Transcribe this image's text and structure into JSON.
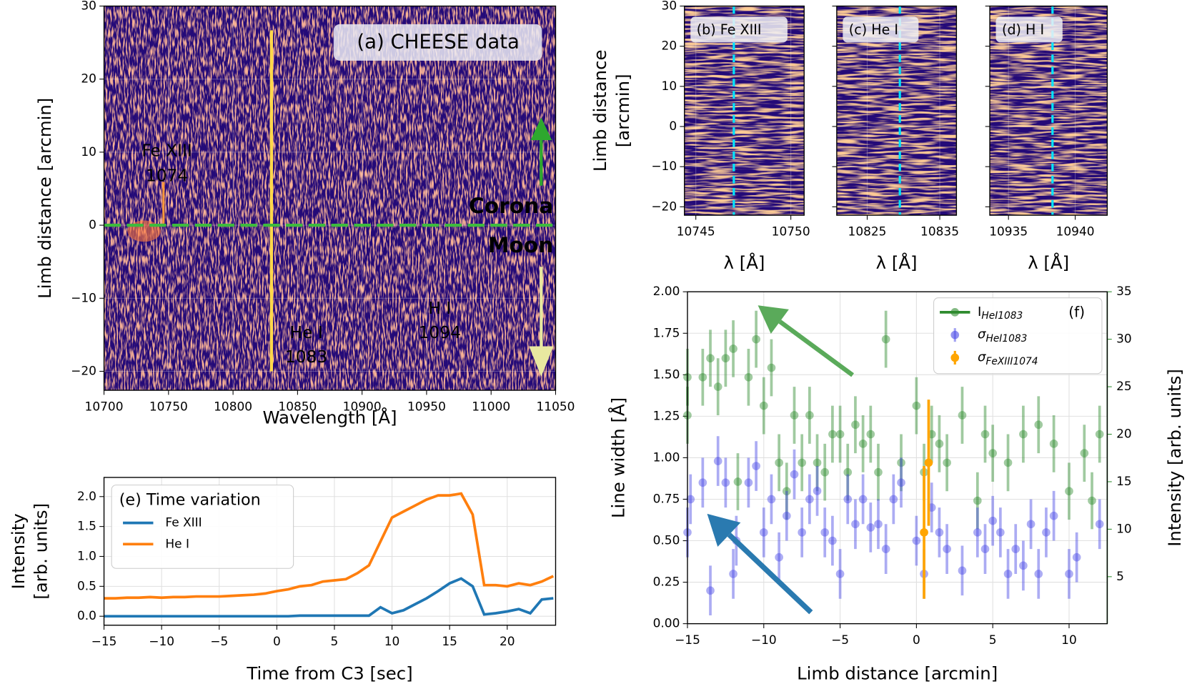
{
  "chart_data": [
    {
      "type": "heatmap",
      "xlabel": "Wavelength [Å]",
      "ylabel": [
        "Limb distance [arcmin]"
      ],
      "annotations": [
        "(a) CHEESE data",
        "Fe XIII",
        "1074",
        "He I",
        "1083",
        "H I",
        "1094",
        "Corona",
        "Moon"
      ],
      "xlim": [
        10700,
        11050
      ],
      "xticks": [
        10700,
        10750,
        10800,
        10850,
        10900,
        10950,
        11000,
        11050
      ],
      "ylim": [
        -22.6,
        30
      ],
      "yticks": [
        {
          "value": -20,
          "label": "−20"
        },
        {
          "value": -10,
          "label": "−10"
        },
        0,
        10,
        20,
        30
      ],
      "grid": true,
      "show_ytick_labels": true
    },
    {
      "type": "heatmap",
      "title": "(b) Fe XIII",
      "xlabel": "λ [Å]",
      "ylabel": [
        "Limb distance",
        "[arcmin]"
      ],
      "xlim": [
        10744.4,
        10750.7
      ],
      "xticks": [
        10745,
        10750
      ],
      "line_x": 10747,
      "ylim": [
        -22.1,
        30
      ],
      "yticks": [
        {
          "value": -20,
          "label": "−20"
        },
        {
          "value": -10,
          "label": "−10"
        },
        0,
        10,
        20,
        30
      ],
      "grid": true,
      "show_ytick_labels": true
    },
    {
      "type": "heatmap",
      "title": "(c) He I",
      "xlabel": "λ [Å]",
      "xlim": [
        10820.8,
        10837.3
      ],
      "xticks": [
        10825,
        10835
      ],
      "line_x": 10829.5,
      "ylim": [
        -22.1,
        30
      ],
      "yticks": [
        -20,
        -10,
        0,
        10,
        20,
        30
      ],
      "grid": true,
      "show_ytick_labels": false
    },
    {
      "type": "heatmap",
      "title": "(d) H I",
      "xlabel": "λ [Å]",
      "xlim": [
        10933.6,
        10942.4
      ],
      "xticks": [
        10935,
        10940
      ],
      "line_x": 10938.3,
      "ylim": [
        -22.1,
        30
      ],
      "yticks": [
        -20,
        -10,
        0,
        10,
        20,
        30
      ],
      "grid": true,
      "show_ytick_labels": false
    },
    {
      "type": "line",
      "xlabel": "Time from C3 [sec]",
      "ylabel": [
        "Intensity",
        "[arb. units]"
      ],
      "legend_title": "(e) Time variation",
      "x": [
        -15,
        -14,
        -13,
        -12,
        -11,
        -10,
        -9,
        -8,
        -7,
        -6,
        -5,
        -4,
        -3,
        -2,
        -1,
        0,
        1,
        2,
        3,
        4,
        5,
        6,
        7,
        8,
        9,
        10,
        11,
        12,
        13,
        14,
        15,
        16,
        17,
        18,
        19,
        20,
        21,
        22,
        23,
        24
      ],
      "series": [
        {
          "name": "Fe XIII",
          "color": "#1f77b4",
          "values": [
            0,
            0,
            0,
            0,
            0,
            0,
            0,
            0,
            0,
            0,
            0,
            0,
            0,
            0,
            0,
            0,
            0,
            0.01,
            0.01,
            0.01,
            0.01,
            0.01,
            0.01,
            0.01,
            0.15,
            0.05,
            0.1,
            0.2,
            0.3,
            0.42,
            0.55,
            0.63,
            0.5,
            0.03,
            0.05,
            0.08,
            0.12,
            0.05,
            0.28,
            0.3
          ]
        },
        {
          "name": "He I",
          "color": "#ff7f0e",
          "values": [
            0.3,
            0.3,
            0.31,
            0.31,
            0.32,
            0.31,
            0.32,
            0.32,
            0.33,
            0.33,
            0.33,
            0.34,
            0.35,
            0.36,
            0.38,
            0.42,
            0.45,
            0.5,
            0.52,
            0.58,
            0.6,
            0.62,
            0.72,
            0.85,
            1.25,
            1.65,
            1.75,
            1.85,
            1.95,
            2.02,
            2.02,
            2.05,
            1.7,
            0.52,
            0.52,
            0.5,
            0.55,
            0.52,
            0.58,
            0.67
          ]
        }
      ],
      "xlim": [
        -15,
        24.2
      ],
      "xticks": [
        {
          "value": -15,
          "label": "−15"
        },
        {
          "value": -10,
          "label": "−10"
        },
        {
          "value": -5,
          "label": "−5"
        },
        0,
        5,
        10,
        15,
        20
      ],
      "ylim": [
        -0.15,
        2.32
      ],
      "yticks": [
        {
          "value": 0,
          "label": "0.0"
        },
        0.5,
        {
          "value": 1,
          "label": "1.0"
        },
        1.5,
        {
          "value": 2,
          "label": "2.0"
        }
      ],
      "grid": true,
      "legend": "upper left"
    },
    {
      "type": "scatter",
      "xlabel": "Limb distance [arcmin]",
      "ylabel": [
        "Line width [Å]"
      ],
      "y2label": "Intensity [arb. units]",
      "legend_title": "(f)",
      "series": [
        {
          "name": "I",
          "name_sub": "HeI1083",
          "color": "#2e8b2e",
          "axis": "y2",
          "x": [
            -15,
            -15,
            -14,
            -13.5,
            -13,
            -12.5,
            -12,
            -11.7,
            -11,
            -10.5,
            -10,
            -9.5,
            -9,
            -8.5,
            -8,
            -7.5,
            -7,
            -6.5,
            -6,
            -5.5,
            -5,
            -4.5,
            -4,
            -3.5,
            -3,
            -2.5,
            -2,
            -1,
            0,
            0.5,
            1,
            1.5,
            2,
            3,
            4,
            4.5,
            5,
            6,
            7,
            8,
            9,
            10,
            11,
            11.5,
            12
          ],
          "values": [
            22,
            26,
            26,
            28,
            25,
            28,
            29,
            15,
            26,
            30,
            23,
            27,
            17,
            14,
            22,
            17,
            22,
            17,
            16,
            20,
            20,
            16,
            21,
            19,
            20,
            16,
            30,
            17,
            23,
            16,
            20,
            19,
            17,
            22,
            13,
            20,
            18,
            17,
            20,
            21,
            19,
            14,
            18,
            13,
            20
          ],
          "errors": [
            3,
            3,
            3,
            3,
            3,
            3,
            3,
            3,
            3,
            3,
            3,
            3,
            3,
            3,
            3,
            3,
            3,
            3,
            3,
            3,
            3,
            3,
            3,
            3,
            3,
            3,
            3,
            3,
            3,
            3,
            3,
            3,
            3,
            3,
            3,
            3,
            3,
            3,
            3,
            3,
            3,
            3,
            3,
            3,
            3
          ]
        },
        {
          "name": "σ",
          "name_sub": "HeI1083",
          "color": "#4a4ae6",
          "x": [
            -15,
            -14.8,
            -14,
            -13.5,
            -13,
            -12.5,
            -12,
            -11.8,
            -11,
            -10.5,
            -10,
            -9.5,
            -9,
            -8.5,
            -8,
            -7.5,
            -7,
            -6.5,
            -6,
            -5.5,
            -5,
            -4.5,
            -4,
            -3.5,
            -3,
            -2.5,
            -2,
            -1.5,
            -1,
            0,
            0.5,
            1,
            1.5,
            2,
            3,
            4,
            4.5,
            5,
            5.5,
            6,
            6.5,
            7,
            7.5,
            8,
            8.5,
            9,
            10,
            10.5,
            12
          ],
          "values": [
            0.55,
            0.75,
            0.85,
            0.2,
            0.98,
            0.85,
            0.3,
            0.5,
            0.85,
            0.95,
            0.55,
            0.75,
            0.4,
            0.65,
            0.9,
            0.55,
            0.75,
            0.8,
            0.55,
            0.5,
            0.3,
            0.75,
            0.6,
            0.75,
            0.58,
            0.6,
            0.45,
            0.75,
            0.85,
            0.5,
            0.3,
            0.7,
            0.55,
            0.45,
            0.32,
            0.55,
            0.45,
            0.62,
            0.55,
            0.3,
            0.45,
            0.35,
            0.6,
            0.3,
            0.55,
            0.65,
            0.3,
            0.4,
            0.6
          ],
          "errors": [
            0.15,
            0.15,
            0.15,
            0.15,
            0.15,
            0.15,
            0.15,
            0.15,
            0.15,
            0.15,
            0.15,
            0.15,
            0.15,
            0.15,
            0.15,
            0.15,
            0.15,
            0.15,
            0.15,
            0.15,
            0.15,
            0.15,
            0.15,
            0.15,
            0.15,
            0.15,
            0.15,
            0.15,
            0.15,
            0.15,
            0.15,
            0.15,
            0.15,
            0.15,
            0.15,
            0.15,
            0.15,
            0.15,
            0.15,
            0.15,
            0.15,
            0.15,
            0.15,
            0.15,
            0.15,
            0.15,
            0.15,
            0.15,
            0.15
          ]
        },
        {
          "name": "σ",
          "name_sub": "FeXIII1074",
          "color": "#ffa500",
          "x": [
            0.5,
            0.8
          ],
          "values": [
            0.55,
            0.97
          ],
          "errors": [
            0.4,
            0.38
          ]
        }
      ],
      "xlim": [
        -15,
        12.5
      ],
      "xticks": [
        {
          "value": -15,
          "label": "−15"
        },
        {
          "value": -10,
          "label": "−10"
        },
        {
          "value": -5,
          "label": "−5"
        },
        0,
        5,
        10
      ],
      "ylim": [
        0,
        2
      ],
      "yticks": [
        {
          "value": 0,
          "label": "0.00"
        },
        0.25,
        {
          "value": 0.5,
          "label": "0.50"
        },
        0.75,
        {
          "value": 1,
          "label": "1.00"
        },
        1.25,
        {
          "value": 1.5,
          "label": "1.50"
        },
        1.75,
        {
          "value": 2,
          "label": "2.00"
        }
      ],
      "y2lim": [
        0.05,
        35
      ],
      "y2ticks": [
        5,
        10,
        15,
        20,
        25,
        30,
        35
      ],
      "grid": true,
      "legend": "upper right"
    }
  ]
}
